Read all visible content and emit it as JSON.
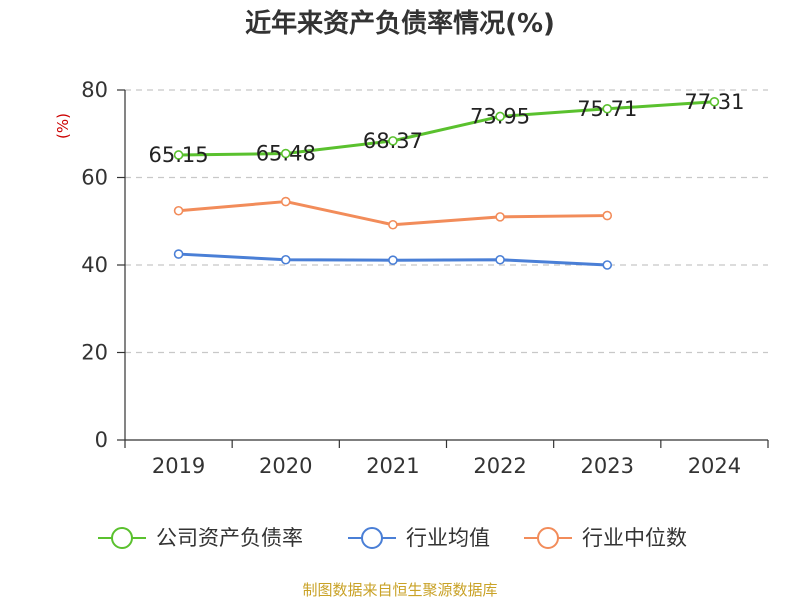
{
  "colors": {
    "company": "#5ac12e",
    "avg": "#4a7fd6",
    "median": "#f28c5a",
    "ylabel": "#cc0000",
    "source": "#c9a227",
    "grid": "#c8c8c8",
    "axis": "#333333"
  },
  "chart_data": {
    "type": "line",
    "title": "近年来资产负债率情况(%)",
    "ylabel": "(%)",
    "xlabel": "",
    "ylim": [
      0,
      80
    ],
    "yticks": [
      0,
      20,
      40,
      60,
      80
    ],
    "grid": true,
    "legend_position": "bottom",
    "categories": [
      "2019",
      "2020",
      "2021",
      "2022",
      "2023",
      "2024"
    ],
    "series": [
      {
        "name": "公司资产负债率",
        "color_key": "company",
        "show_labels": true,
        "values": [
          65.15,
          65.48,
          68.37,
          73.95,
          75.71,
          77.31
        ]
      },
      {
        "name": "行业均值",
        "color_key": "avg",
        "show_labels": false,
        "values": [
          42.5,
          41.2,
          41.1,
          41.2,
          40.0,
          null
        ]
      },
      {
        "name": "行业中位数",
        "color_key": "median",
        "show_labels": false,
        "values": [
          52.4,
          54.5,
          49.2,
          51.0,
          51.3,
          null
        ]
      }
    ]
  },
  "source": "制图数据来自恒生聚源数据库"
}
